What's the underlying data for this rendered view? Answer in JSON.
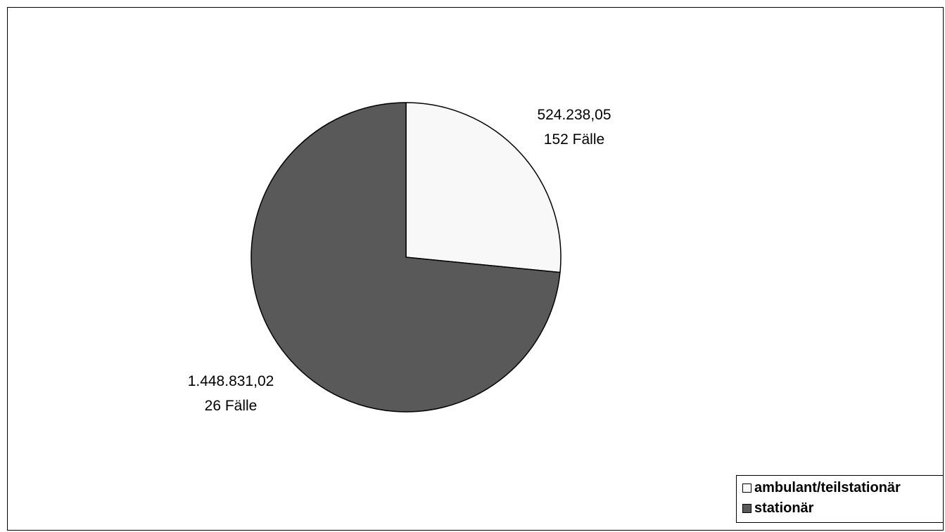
{
  "chart_data": {
    "type": "pie",
    "title": "",
    "slices": [
      {
        "name": "ambulant/teilstationär",
        "value": 524238.05,
        "value_label": "524.238,05",
        "cases_label": "152 Fälle",
        "color": "#f8f8f8"
      },
      {
        "name": "stationär",
        "value": 1448831.02,
        "value_label": "1.448.831,02",
        "cases_label": "26 Fälle",
        "color": "#595959"
      }
    ],
    "legend_position": "bottom-right",
    "start_angle": "top",
    "direction": "clockwise"
  }
}
